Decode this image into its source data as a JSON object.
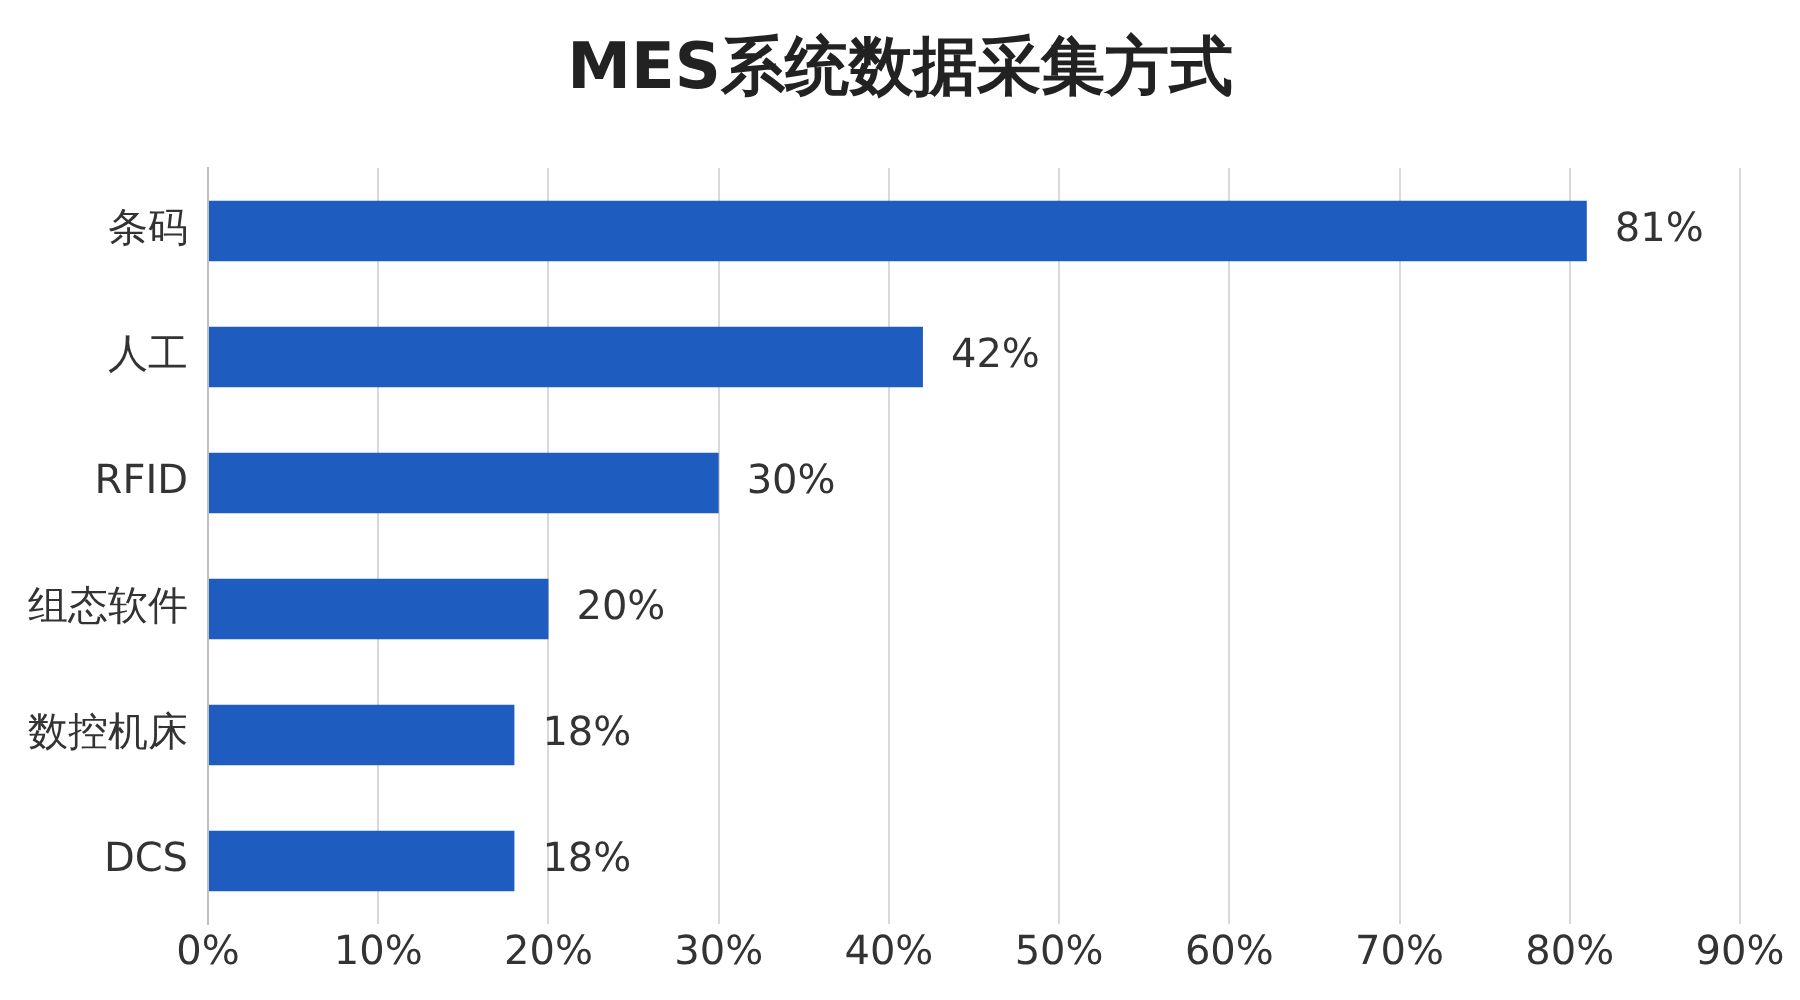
{
  "chart_data": {
    "type": "bar",
    "title": "MES系统数据采集方式",
    "orientation": "horizontal",
    "categories": [
      "条码",
      "人工",
      "RFID",
      "组态软件",
      "数控机床",
      "DCS"
    ],
    "values": [
      81,
      42,
      30,
      20,
      18,
      18
    ],
    "value_labels": [
      "81%",
      "42%",
      "30%",
      "20%",
      "18%",
      "18%"
    ],
    "color": "#1f5cbf",
    "xlim": [
      0,
      90
    ],
    "xticks": [
      {
        "value": 0,
        "label": "0%"
      },
      {
        "value": 10,
        "label": "10%"
      },
      {
        "value": 20,
        "label": "20%"
      },
      {
        "value": 30,
        "label": "30%"
      },
      {
        "value": 40,
        "label": "40%"
      },
      {
        "value": 50,
        "label": "50%"
      },
      {
        "value": 60,
        "label": "60%"
      },
      {
        "value": 70,
        "label": "70%"
      },
      {
        "value": 80,
        "label": "80%"
      },
      {
        "value": 90,
        "label": "90%"
      }
    ],
    "grid": "x"
  }
}
